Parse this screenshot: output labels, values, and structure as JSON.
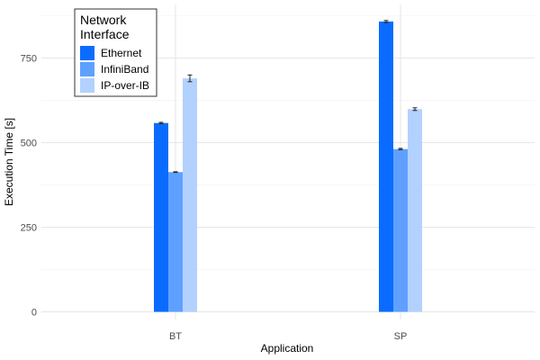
{
  "chart_data": {
    "type": "bar",
    "categories": [
      "BT",
      "SP"
    ],
    "series": [
      {
        "name": "Ethernet",
        "values": [
          558,
          858
        ],
        "errors": [
          2,
          3
        ],
        "color": "#0a6cff"
      },
      {
        "name": "InfiniBand",
        "values": [
          413,
          481
        ],
        "errors": [
          1,
          2
        ],
        "color": "#5fa0ff"
      },
      {
        "name": "IP-over-IB",
        "values": [
          690,
          599
        ],
        "errors": [
          10,
          4
        ],
        "color": "#b3d1ff"
      }
    ],
    "title": "",
    "xlabel": "Application",
    "ylabel": "Execution Time [s]",
    "ylim": [
      0,
      900
    ],
    "yticks": [
      "0",
      "250",
      "500",
      "750"
    ],
    "grid": true,
    "legend": {
      "title_line1": "Network",
      "title_line2": "Interface",
      "placement": "top-left"
    }
  }
}
